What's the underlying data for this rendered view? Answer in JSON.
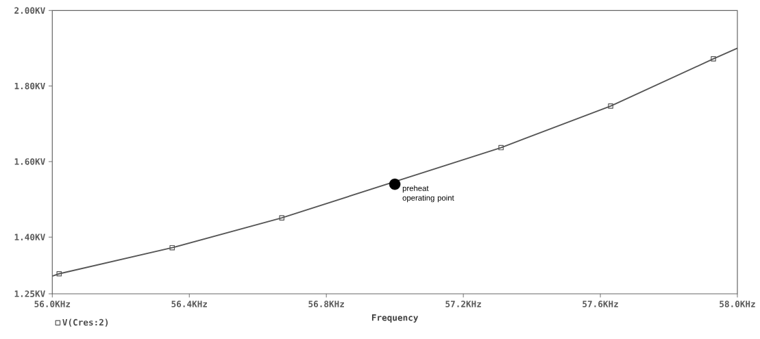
{
  "chart_data": {
    "type": "line",
    "xlabel": "Frequency",
    "xlim": [
      56.0,
      58.0
    ],
    "ylim": [
      1.25,
      2.0
    ],
    "xticks": [
      {
        "value": 56.0,
        "label": "56.0KHz"
      },
      {
        "value": 56.4,
        "label": "56.4KHz"
      },
      {
        "value": 56.8,
        "label": "56.8KHz"
      },
      {
        "value": 57.2,
        "label": "57.2KHz"
      },
      {
        "value": 57.6,
        "label": "57.6KHz"
      },
      {
        "value": 58.0,
        "label": "58.0KHz"
      }
    ],
    "yticks": [
      {
        "value": 1.25,
        "label": "1.25KV"
      },
      {
        "value": 1.4,
        "label": "1.40KV"
      },
      {
        "value": 1.6,
        "label": "1.60KV"
      },
      {
        "value": 1.8,
        "label": "1.80KV"
      },
      {
        "value": 2.0,
        "label": "2.00KV"
      }
    ],
    "grid": false,
    "legend": "bottom left",
    "series": [
      {
        "name": "V(Cres:2)",
        "color": "#555555",
        "marker": "square",
        "x": [
          56.0,
          56.02,
          56.35,
          56.67,
          57.31,
          57.63,
          57.93,
          58.0
        ],
        "values": [
          1.297,
          1.303,
          1.372,
          1.451,
          1.637,
          1.747,
          1.872,
          1.9
        ]
      },
      {
        "type": "scatter",
        "color": "#000000",
        "marker": "circle",
        "x": [
          57.0
        ],
        "values": [
          1.54
        ]
      }
    ],
    "annotations": [
      {
        "text": "preheat operating point",
        "x": 57.0,
        "y": 1.54
      }
    ]
  }
}
